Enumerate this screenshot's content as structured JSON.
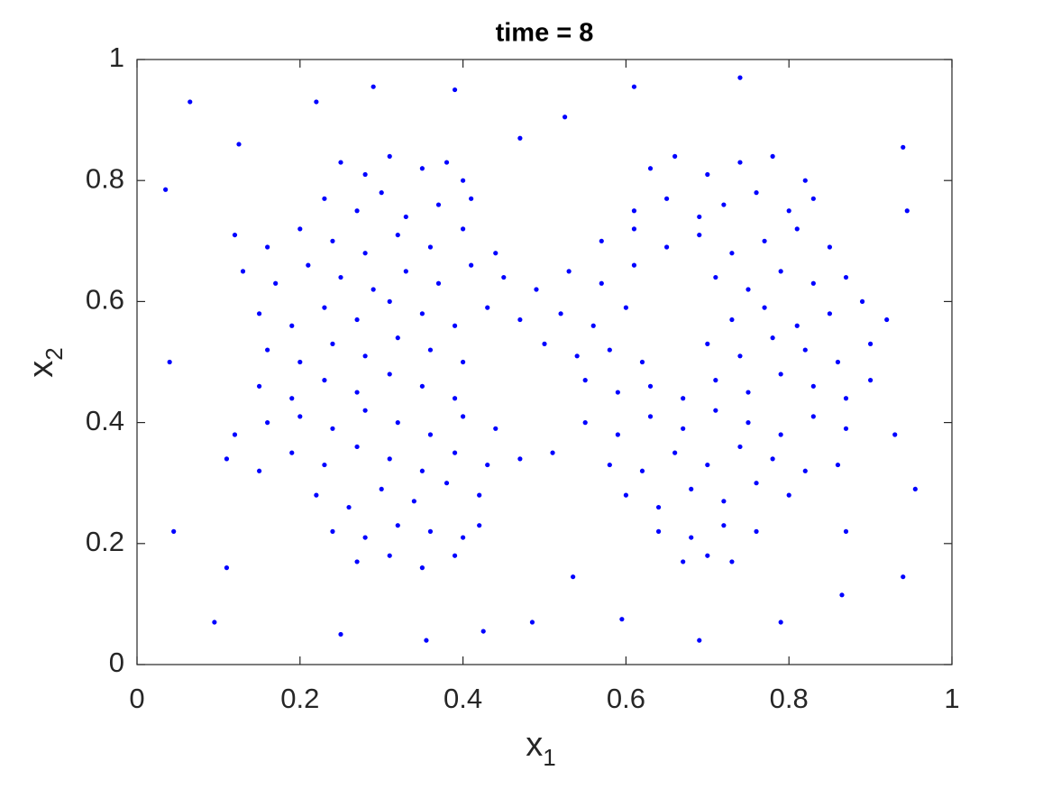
{
  "chart_data": {
    "type": "scatter",
    "title": "time = 8",
    "xlabel": {
      "text": "x",
      "subscript": "1"
    },
    "ylabel": {
      "text": "x",
      "subscript": "2"
    },
    "xlim": [
      0,
      1
    ],
    "ylim": [
      0,
      1
    ],
    "xticks": [
      0,
      0.2,
      0.4,
      0.6,
      0.8,
      1
    ],
    "yticks": [
      0,
      0.2,
      0.4,
      0.6,
      0.8,
      1
    ],
    "grid": false,
    "series": [
      {
        "color": "#0000ff",
        "x": [
          0.25,
          0.28,
          0.31,
          0.35,
          0.38,
          0.4,
          0.63,
          0.66,
          0.7,
          0.74,
          0.78,
          0.82,
          0.23,
          0.27,
          0.3,
          0.33,
          0.37,
          0.41,
          0.61,
          0.65,
          0.69,
          0.72,
          0.76,
          0.8,
          0.83,
          0.12,
          0.16,
          0.2,
          0.24,
          0.28,
          0.32,
          0.36,
          0.4,
          0.44,
          0.57,
          0.61,
          0.65,
          0.69,
          0.73,
          0.77,
          0.81,
          0.85,
          0.13,
          0.17,
          0.21,
          0.25,
          0.29,
          0.33,
          0.37,
          0.41,
          0.45,
          0.49,
          0.53,
          0.57,
          0.61,
          0.71,
          0.75,
          0.79,
          0.83,
          0.87,
          0.15,
          0.19,
          0.23,
          0.27,
          0.31,
          0.35,
          0.39,
          0.43,
          0.47,
          0.52,
          0.56,
          0.6,
          0.73,
          0.77,
          0.81,
          0.85,
          0.89,
          0.92,
          0.16,
          0.2,
          0.24,
          0.28,
          0.32,
          0.36,
          0.4,
          0.5,
          0.54,
          0.58,
          0.62,
          0.7,
          0.74,
          0.78,
          0.82,
          0.86,
          0.9,
          0.15,
          0.19,
          0.23,
          0.27,
          0.31,
          0.35,
          0.39,
          0.55,
          0.59,
          0.63,
          0.67,
          0.71,
          0.75,
          0.79,
          0.83,
          0.87,
          0.9,
          0.12,
          0.16,
          0.2,
          0.24,
          0.28,
          0.32,
          0.36,
          0.4,
          0.44,
          0.55,
          0.59,
          0.63,
          0.67,
          0.71,
          0.75,
          0.79,
          0.83,
          0.87,
          0.93,
          0.11,
          0.15,
          0.19,
          0.23,
          0.27,
          0.31,
          0.35,
          0.39,
          0.43,
          0.47,
          0.51,
          0.58,
          0.62,
          0.66,
          0.7,
          0.74,
          0.78,
          0.82,
          0.86,
          0.22,
          0.26,
          0.3,
          0.34,
          0.38,
          0.42,
          0.6,
          0.64,
          0.68,
          0.72,
          0.76,
          0.8,
          0.24,
          0.28,
          0.32,
          0.36,
          0.4,
          0.42,
          0.64,
          0.68,
          0.72,
          0.76,
          0.27,
          0.31,
          0.35,
          0.39,
          0.67,
          0.7,
          0.73,
          0.035,
          0.065,
          0.04,
          0.045,
          0.095,
          0.11,
          0.125,
          0.22,
          0.29,
          0.39,
          0.47,
          0.525,
          0.61,
          0.74,
          0.94,
          0.945,
          0.955,
          0.94,
          0.87,
          0.865,
          0.79,
          0.69,
          0.595,
          0.535,
          0.485,
          0.425,
          0.355,
          0.25
        ],
        "values": [
          0.83,
          0.81,
          0.84,
          0.82,
          0.83,
          0.8,
          0.82,
          0.84,
          0.81,
          0.83,
          0.84,
          0.8,
          0.77,
          0.75,
          0.78,
          0.74,
          0.76,
          0.77,
          0.75,
          0.77,
          0.74,
          0.76,
          0.78,
          0.75,
          0.77,
          0.71,
          0.69,
          0.72,
          0.7,
          0.68,
          0.71,
          0.69,
          0.72,
          0.68,
          0.7,
          0.72,
          0.69,
          0.71,
          0.68,
          0.7,
          0.72,
          0.69,
          0.65,
          0.63,
          0.66,
          0.64,
          0.62,
          0.65,
          0.63,
          0.66,
          0.64,
          0.62,
          0.65,
          0.63,
          0.66,
          0.64,
          0.62,
          0.65,
          0.63,
          0.64,
          0.58,
          0.56,
          0.59,
          0.57,
          0.6,
          0.58,
          0.56,
          0.59,
          0.57,
          0.58,
          0.56,
          0.59,
          0.57,
          0.59,
          0.56,
          0.58,
          0.6,
          0.57,
          0.52,
          0.5,
          0.53,
          0.51,
          0.54,
          0.52,
          0.5,
          0.53,
          0.51,
          0.52,
          0.5,
          0.53,
          0.51,
          0.54,
          0.52,
          0.5,
          0.53,
          0.46,
          0.44,
          0.47,
          0.45,
          0.48,
          0.46,
          0.44,
          0.47,
          0.45,
          0.46,
          0.44,
          0.47,
          0.45,
          0.48,
          0.46,
          0.44,
          0.47,
          0.38,
          0.4,
          0.41,
          0.39,
          0.42,
          0.4,
          0.38,
          0.41,
          0.39,
          0.4,
          0.38,
          0.41,
          0.39,
          0.42,
          0.4,
          0.38,
          0.41,
          0.39,
          0.38,
          0.34,
          0.32,
          0.35,
          0.33,
          0.36,
          0.34,
          0.32,
          0.35,
          0.33,
          0.34,
          0.35,
          0.33,
          0.32,
          0.35,
          0.33,
          0.36,
          0.34,
          0.32,
          0.33,
          0.28,
          0.26,
          0.29,
          0.27,
          0.3,
          0.28,
          0.28,
          0.26,
          0.29,
          0.27,
          0.3,
          0.28,
          0.22,
          0.21,
          0.23,
          0.22,
          0.21,
          0.23,
          0.22,
          0.21,
          0.23,
          0.22,
          0.17,
          0.18,
          0.16,
          0.18,
          0.17,
          0.18,
          0.17,
          0.785,
          0.93,
          0.5,
          0.22,
          0.07,
          0.16,
          0.86,
          0.93,
          0.955,
          0.95,
          0.87,
          0.905,
          0.955,
          0.97,
          0.855,
          0.75,
          0.29,
          0.145,
          0.22,
          0.115,
          0.07,
          0.04,
          0.075,
          0.145,
          0.07,
          0.055,
          0.04,
          0.05
        ]
      }
    ]
  }
}
